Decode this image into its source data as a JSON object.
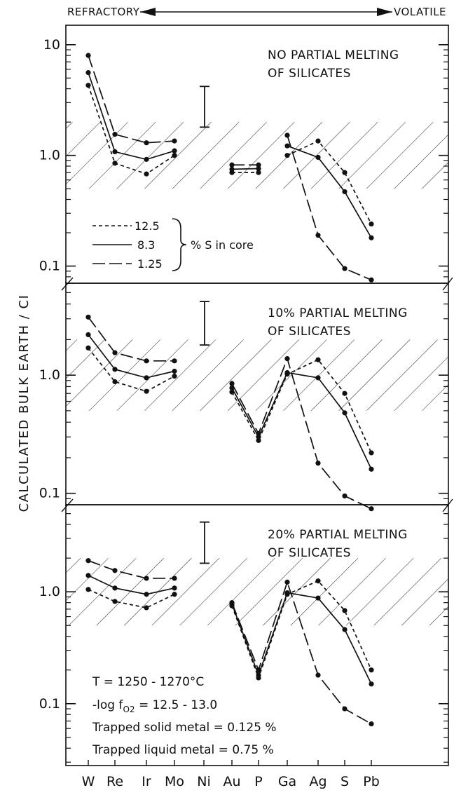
{
  "chart_data": {
    "type": "line",
    "scale": "log",
    "top_labels": {
      "left": "REFRACTORY",
      "right": "VOLATILE"
    },
    "ylabel": "CALCULATED BULK EARTH / CI",
    "categories": [
      "W",
      "Re",
      "Ir",
      "Mo",
      "Ni",
      "Au",
      "P",
      "Ga",
      "Ag",
      "S",
      "Pb"
    ],
    "y_tick_labels": [
      "10",
      "1.0",
      "0.1"
    ],
    "shaded_band": [
      0.5,
      2.0
    ],
    "error_bar": [
      1.8,
      4.2
    ],
    "legend": {
      "entries": [
        {
          "label": "12.5",
          "style": "short-dash"
        },
        {
          "label": "8.3",
          "style": "solid"
        },
        {
          "label": "1.25",
          "style": "long-dash"
        }
      ],
      "group_label": "% S in core"
    },
    "annotations": [
      "T = 1250 - 1270°C",
      "-log f",
      "O2",
      " = 12.5 - 13.0",
      "Trapped solid metal = 0.125 %",
      "Trapped liquid metal = 0.75 %"
    ],
    "panels": [
      {
        "title_line1": "NO PARTIAL MELTING",
        "title_line2": "OF SILICATES",
        "ylim": [
          0.07,
          15
        ],
        "series": [
          {
            "style": "short-dash",
            "segments": [
              {
                "x": [
                  "W",
                  "Re",
                  "Ir",
                  "Mo"
                ],
                "y": [
                  4.3,
                  0.85,
                  0.68,
                  1.0
                ]
              },
              {
                "x": [
                  "Au",
                  "P"
                ],
                "y": [
                  0.7,
                  0.7
                ]
              },
              {
                "x": [
                  "Ga",
                  "Ag",
                  "S",
                  "Pb"
                ],
                "y": [
                  1.0,
                  1.35,
                  0.7,
                  0.24
                ]
              }
            ]
          },
          {
            "style": "solid",
            "segments": [
              {
                "x": [
                  "W",
                  "Re",
                  "Ir",
                  "Mo"
                ],
                "y": [
                  5.6,
                  1.08,
                  0.92,
                  1.1
                ]
              },
              {
                "x": [
                  "Au",
                  "P"
                ],
                "y": [
                  0.75,
                  0.76
                ]
              },
              {
                "x": [
                  "Ga",
                  "Ag",
                  "S",
                  "Pb"
                ],
                "y": [
                  1.22,
                  0.96,
                  0.47,
                  0.18
                ]
              }
            ]
          },
          {
            "style": "long-dash",
            "segments": [
              {
                "x": [
                  "W",
                  "Re",
                  "Ir",
                  "Mo"
                ],
                "y": [
                  8.0,
                  1.55,
                  1.3,
                  1.35
                ]
              },
              {
                "x": [
                  "Au",
                  "P"
                ],
                "y": [
                  0.82,
                  0.82
                ]
              },
              {
                "x": [
                  "Ga",
                  "Ag",
                  "S",
                  "Pb"
                ],
                "y": [
                  1.52,
                  0.19,
                  0.095,
                  0.075
                ]
              }
            ]
          }
        ]
      },
      {
        "title_line1": "10% PARTIAL MELTING",
        "title_line2": "OF SILICATES",
        "ylim": [
          0.08,
          6
        ],
        "series": [
          {
            "style": "short-dash",
            "segments": [
              {
                "x": [
                  "W",
                  "Re",
                  "Ir",
                  "Mo"
                ],
                "y": [
                  1.7,
                  0.88,
                  0.73,
                  0.98
                ]
              },
              {
                "x": [
                  "Au",
                  "P",
                  "Ga",
                  "Ag",
                  "S",
                  "Pb"
                ],
                "y": [
                  0.72,
                  0.28,
                  1.02,
                  1.35,
                  0.7,
                  0.22
                ]
              }
            ]
          },
          {
            "style": "solid",
            "segments": [
              {
                "x": [
                  "W",
                  "Re",
                  "Ir",
                  "Mo"
                ],
                "y": [
                  2.2,
                  1.12,
                  0.95,
                  1.08
                ]
              },
              {
                "x": [
                  "Au",
                  "P",
                  "Ga",
                  "Ag",
                  "S",
                  "Pb"
                ],
                "y": [
                  0.78,
                  0.3,
                  1.05,
                  0.95,
                  0.48,
                  0.16
                ]
              }
            ]
          },
          {
            "style": "long-dash",
            "segments": [
              {
                "x": [
                  "W",
                  "Re",
                  "Ir",
                  "Mo"
                ],
                "y": [
                  3.1,
                  1.55,
                  1.32,
                  1.32
                ]
              },
              {
                "x": [
                  "Au",
                  "P",
                  "Ga",
                  "Ag",
                  "S",
                  "Pb"
                ],
                "y": [
                  0.85,
                  0.32,
                  1.38,
                  0.18,
                  0.095,
                  0.074
                ]
              }
            ]
          }
        ]
      },
      {
        "title_line1": "20% PARTIAL MELTING",
        "title_line2": "OF SILICATES",
        "ylim": [
          0.028,
          6
        ],
        "series": [
          {
            "style": "short-dash",
            "segments": [
              {
                "x": [
                  "W",
                  "Re",
                  "Ir",
                  "Mo"
                ],
                "y": [
                  1.05,
                  0.82,
                  0.72,
                  0.95
                ]
              },
              {
                "x": [
                  "Au",
                  "P",
                  "Ga",
                  "Ag",
                  "S",
                  "Pb"
                ],
                "y": [
                  0.75,
                  0.17,
                  0.95,
                  1.25,
                  0.68,
                  0.2
                ]
              }
            ]
          },
          {
            "style": "solid",
            "segments": [
              {
                "x": [
                  "W",
                  "Re",
                  "Ir",
                  "Mo"
                ],
                "y": [
                  1.4,
                  1.08,
                  0.95,
                  1.08
                ]
              },
              {
                "x": [
                  "Au",
                  "P",
                  "Ga",
                  "Ag",
                  "S",
                  "Pb"
                ],
                "y": [
                  0.78,
                  0.18,
                  0.98,
                  0.88,
                  0.46,
                  0.15
                ]
              }
            ]
          },
          {
            "style": "long-dash",
            "segments": [
              {
                "x": [
                  "W",
                  "Re",
                  "Ir",
                  "Mo"
                ],
                "y": [
                  1.9,
                  1.55,
                  1.32,
                  1.32
                ]
              },
              {
                "x": [
                  "Au",
                  "P",
                  "Ga",
                  "Ag",
                  "S",
                  "Pb"
                ],
                "y": [
                  0.8,
                  0.2,
                  1.22,
                  0.18,
                  0.09,
                  0.066
                ]
              }
            ]
          }
        ]
      }
    ]
  }
}
